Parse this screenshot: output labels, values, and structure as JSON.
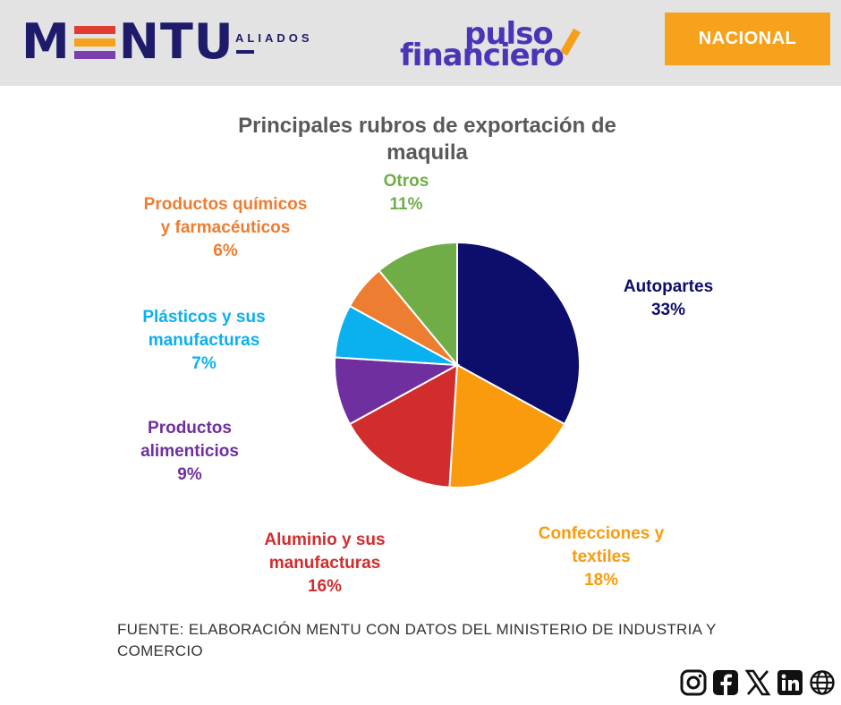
{
  "header": {
    "brand_logo_text": "MENTU",
    "brand_sub": "ALIADOS",
    "partner_logo_line1": "pulso",
    "partner_logo_line2": "financiero",
    "section_badge": "NACIONAL",
    "colors": {
      "navy": "#1e1b6b",
      "orange": "#f6a21c",
      "purple": "#4a35b8",
      "red": "#e03c31",
      "violet": "#7b3fb0"
    }
  },
  "chart_data": {
    "type": "pie",
    "title": "Principales rubros de exportación de maquila",
    "start_angle_deg": 0,
    "direction": "clockwise",
    "slices": [
      {
        "category": "Autopartes",
        "label_lines": [
          "Autopartes"
        ],
        "value": 33,
        "display": "33%",
        "color": "#0d0d6b",
        "label_color": "#0d0d6b"
      },
      {
        "category": "Confecciones y textiles",
        "label_lines": [
          "Confecciones y",
          "textiles"
        ],
        "value": 18,
        "display": "18%",
        "color": "#f99b0c",
        "label_color": "#f99b0c"
      },
      {
        "category": "Aluminio y sus manufacturas",
        "label_lines": [
          "Aluminio y sus",
          "manufacturas"
        ],
        "value": 16,
        "display": "16%",
        "color": "#d12d2d",
        "label_color": "#d12d2d"
      },
      {
        "category": "Productos alimenticios",
        "label_lines": [
          "Productos",
          "alimenticios"
        ],
        "value": 9,
        "display": "9%",
        "color": "#6f2f9f",
        "label_color": "#6f2f9f"
      },
      {
        "category": "Plásticos y sus manufacturas",
        "label_lines": [
          "Plásticos y sus",
          "manufacturas"
        ],
        "value": 7,
        "display": "7%",
        "color": "#0bb0ee",
        "label_color": "#0bb0ee"
      },
      {
        "category": "Productos químicos y farmacéuticos",
        "label_lines": [
          "Productos químicos",
          "y farmacéuticos"
        ],
        "value": 6,
        "display": "6%",
        "color": "#ed7d31",
        "label_color": "#ed7d31"
      },
      {
        "category": "Otros",
        "label_lines": [
          "Otros"
        ],
        "value": 11,
        "display": "11%",
        "color": "#70ad47",
        "label_color": "#70ad47"
      }
    ]
  },
  "footer": {
    "source": "FUENTE: ELABORACIÓN MENTU CON DATOS DEL MINISTERIO DE INDUSTRIA Y COMERCIO",
    "social_icons": [
      "instagram-icon",
      "facebook-icon",
      "x-icon",
      "linkedin-icon",
      "globe-icon"
    ]
  }
}
